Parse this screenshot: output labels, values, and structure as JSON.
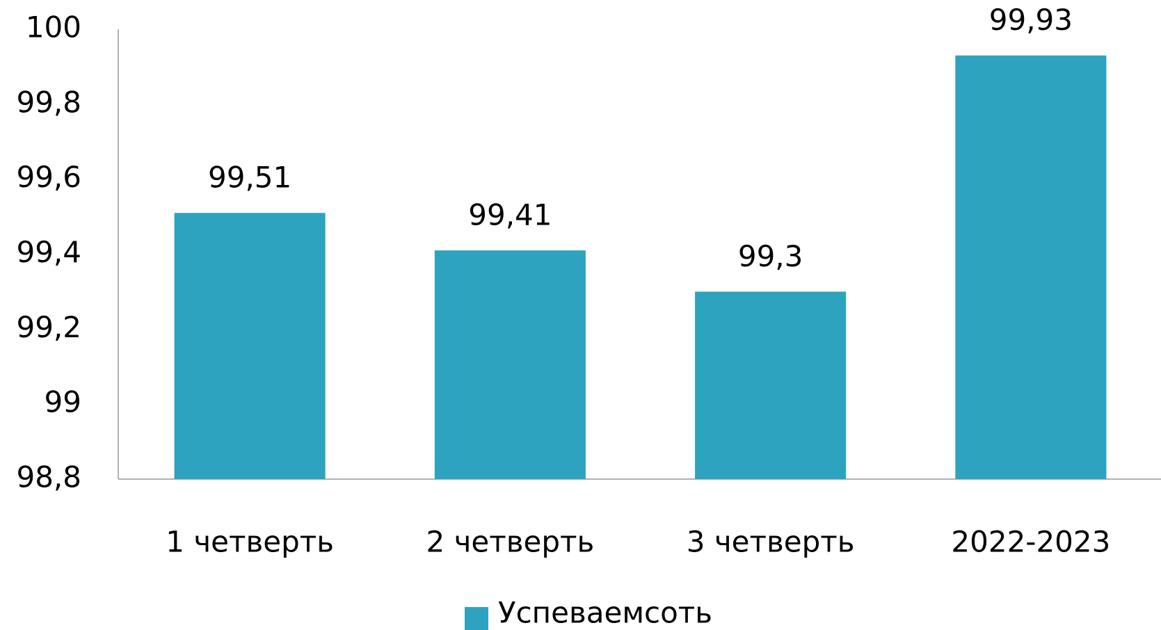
{
  "chart_data": {
    "type": "bar",
    "categories": [
      "1 четверть",
      "2 четверть",
      "3 четверть",
      "2022-2023"
    ],
    "series": [
      {
        "name": "Успеваемсоть",
        "color": "#2ea3bf",
        "values": [
          99.51,
          99.41,
          99.3,
          99.93
        ],
        "value_labels": [
          "99,51",
          "99,41",
          "99,3",
          "99,93"
        ]
      }
    ],
    "ylim": [
      98.8,
      100
    ],
    "yticks": [
      {
        "value": 98.8,
        "label": "98,8"
      },
      99,
      {
        "value": 99.2,
        "label": "99,2"
      },
      {
        "value": 99.4,
        "label": "99,4"
      },
      {
        "value": 99.6,
        "label": "99,6"
      },
      {
        "value": 99.8,
        "label": "99,8"
      },
      100
    ],
    "grid": false,
    "legend": "bottom"
  }
}
